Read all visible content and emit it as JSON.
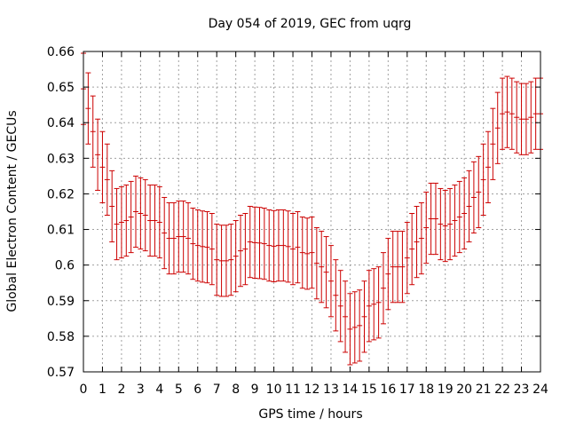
{
  "chart_data": {
    "type": "errorbar",
    "title": "Day 054 of 2019, GEC from uqrg",
    "xlabel": "GPS time / hours",
    "ylabel": "Global Electron Content / GECUs",
    "xlim": [
      0,
      24
    ],
    "ylim": [
      0.57,
      0.66
    ],
    "xticks": [
      0,
      1,
      2,
      3,
      4,
      5,
      6,
      7,
      8,
      9,
      10,
      11,
      12,
      13,
      14,
      15,
      16,
      17,
      18,
      19,
      20,
      21,
      22,
      23,
      24
    ],
    "yticks": [
      0.57,
      0.58,
      0.59,
      0.6,
      0.61,
      0.62,
      0.63,
      0.64,
      0.65,
      0.66
    ],
    "ytick_labels": [
      "0.57",
      "0.58",
      "0.59",
      "0.6",
      "0.61",
      "0.62",
      "0.63",
      "0.64",
      "0.65",
      "0.66"
    ],
    "grid": true,
    "series": [
      {
        "name": "GEC",
        "color": "#cc0000",
        "x": [
          0.0,
          0.25,
          0.5,
          0.75,
          1.0,
          1.25,
          1.5,
          1.75,
          2.0,
          2.25,
          2.5,
          2.75,
          3.0,
          3.25,
          3.5,
          3.75,
          4.0,
          4.25,
          4.5,
          4.75,
          5.0,
          5.25,
          5.5,
          5.75,
          6.0,
          6.25,
          6.5,
          6.75,
          7.0,
          7.25,
          7.5,
          7.75,
          8.0,
          8.25,
          8.5,
          8.75,
          9.0,
          9.25,
          9.5,
          9.75,
          10.0,
          10.25,
          10.5,
          10.75,
          11.0,
          11.25,
          11.5,
          11.75,
          12.0,
          12.25,
          12.5,
          12.75,
          13.0,
          13.25,
          13.5,
          13.75,
          14.0,
          14.25,
          14.5,
          14.75,
          15.0,
          15.25,
          15.5,
          15.75,
          16.0,
          16.25,
          16.5,
          16.75,
          17.0,
          17.25,
          17.5,
          17.75,
          18.0,
          18.25,
          18.5,
          18.75,
          19.0,
          19.25,
          19.5,
          19.75,
          20.0,
          20.25,
          20.5,
          20.75,
          21.0,
          21.25,
          21.5,
          21.75,
          22.0,
          22.25,
          22.5,
          22.75,
          23.0,
          23.25,
          23.5,
          23.75,
          24.0
        ],
        "y": [
          0.6495,
          0.644,
          0.6375,
          0.631,
          0.6275,
          0.624,
          0.6165,
          0.6115,
          0.612,
          0.6125,
          0.6135,
          0.615,
          0.6145,
          0.614,
          0.6125,
          0.6125,
          0.612,
          0.609,
          0.6075,
          0.6075,
          0.608,
          0.608,
          0.6075,
          0.606,
          0.6055,
          0.6052,
          0.605,
          0.6045,
          0.6015,
          0.6012,
          0.6012,
          0.6015,
          0.6025,
          0.604,
          0.6045,
          0.6065,
          0.6063,
          0.6062,
          0.606,
          0.6055,
          0.6053,
          0.6055,
          0.6055,
          0.6052,
          0.6045,
          0.605,
          0.6035,
          0.6032,
          0.6035,
          0.6005,
          0.5995,
          0.598,
          0.5955,
          0.5915,
          0.5885,
          0.5855,
          0.582,
          0.5825,
          0.583,
          0.5855,
          0.5885,
          0.589,
          0.5895,
          0.5935,
          0.5975,
          0.5995,
          0.5995,
          0.5995,
          0.602,
          0.6045,
          0.6065,
          0.6075,
          0.6105,
          0.613,
          0.613,
          0.6115,
          0.611,
          0.6115,
          0.6125,
          0.6135,
          0.6145,
          0.6165,
          0.619,
          0.6205,
          0.624,
          0.6275,
          0.634,
          0.6385,
          0.6425,
          0.643,
          0.6425,
          0.6415,
          0.641,
          0.641,
          0.6415,
          0.6425,
          0.6425
        ],
        "err": 0.01
      }
    ]
  }
}
